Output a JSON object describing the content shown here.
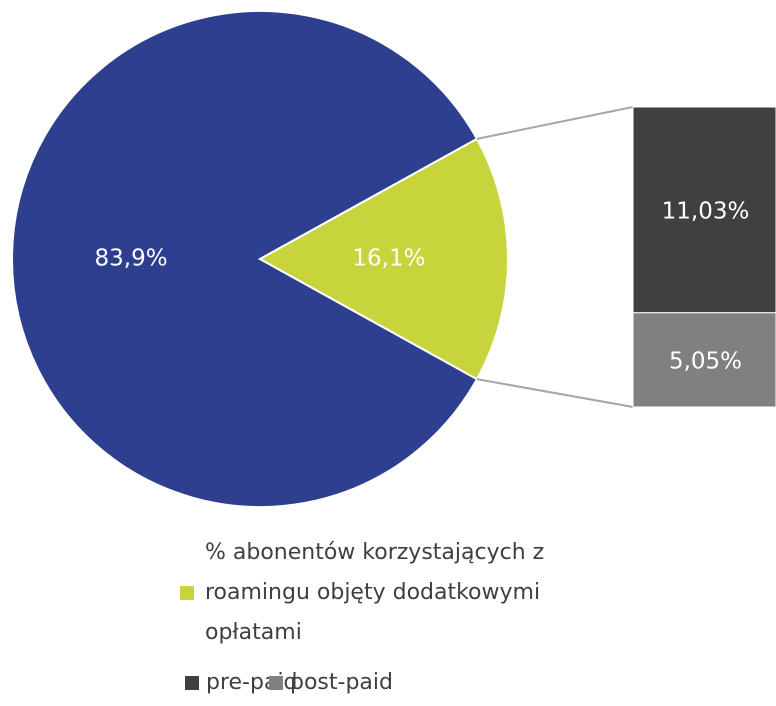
{
  "chart_data": {
    "type": "pie",
    "categories": [
      null,
      "% abonentów korzystających z roamingu objęty dodatkowymi opłatami"
    ],
    "values": [
      83.9,
      16.1
    ],
    "value_labels": [
      "83,9%",
      "16,1%"
    ],
    "colors": [
      "#2e3f8f",
      "#c8d43c"
    ],
    "breakdown": {
      "type": "bar",
      "categories": [
        "pre-paid",
        "post-paid"
      ],
      "values": [
        11.03,
        5.05
      ],
      "value_labels": [
        "11,03%",
        "5,05%"
      ],
      "colors": [
        "#404040",
        "#808080"
      ]
    }
  }
}
